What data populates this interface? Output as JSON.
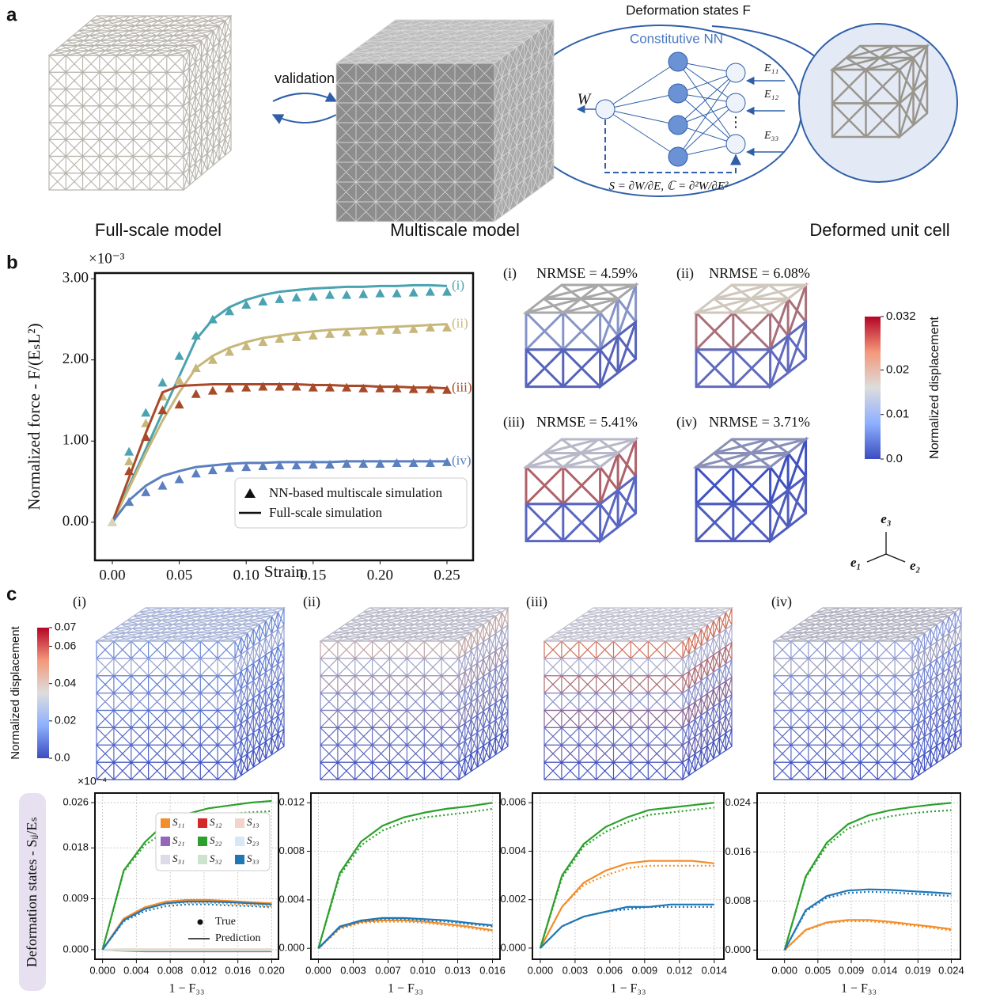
{
  "panel_a": {
    "label": "a",
    "full_scale": "Full-scale model",
    "validation": "validation",
    "multiscale": "Multiscale model",
    "deformation_states": "Deformation states F",
    "network": "Constitutive NN",
    "output": "W",
    "inputs": [
      "E₁₁",
      "E₁₂",
      "E₃₃"
    ],
    "ellipsis": "⋮",
    "formula": "S = ∂W/∂E, ℂ = ∂²W/∂E²",
    "deformed": "Deformed unit cell"
  },
  "panel_b": {
    "label": "b",
    "cells": [
      {
        "tag": "(i)",
        "nrmse": "NRMSE = 4.59%"
      },
      {
        "tag": "(ii)",
        "nrmse": "NRMSE = 6.08%"
      },
      {
        "tag": "(iii)",
        "nrmse": "NRMSE = 5.41%"
      },
      {
        "tag": "(iv)",
        "nrmse": "NRMSE = 3.71%"
      }
    ],
    "colorbar": {
      "label": "Normalized displacement",
      "range": [
        0,
        0.032
      ],
      "ticks": [
        0.032,
        0.02,
        0.01,
        {
          "value": 0,
          "label": "0.0"
        }
      ]
    },
    "axes": [
      "e₁",
      "e₂",
      "e₃"
    ]
  },
  "panel_c": {
    "label": "c",
    "tags": [
      "(i)",
      "(ii)",
      "(iii)",
      "(iv)"
    ],
    "colorbar": {
      "label": "Normalized displacement",
      "range": [
        0,
        0.07
      ],
      "ticks": [
        0.07,
        0.06,
        0.04,
        0.02,
        {
          "value": 0,
          "label": "0.0"
        }
      ]
    },
    "y_label": "Deformation states - Sᵢⱼ/Eₛ"
  },
  "chart_data": [
    {
      "type": "line",
      "x_label": "Strain",
      "y_label": "Normalized force - F/(EₛL²)",
      "y_multiplier": "×10⁻³",
      "grid": false,
      "xlim": [
        -0.013,
        0.2695
      ],
      "xticks": [
        {
          "value": 0,
          "label": "0.00"
        },
        0.05,
        {
          "value": 0.1,
          "label": "0.10"
        },
        0.15,
        {
          "value": 0.2,
          "label": "0.20"
        },
        0.25
      ],
      "ylim": [
        -0.47,
        3.07
      ],
      "yticks": [
        {
          "value": 0,
          "label": "0.00"
        },
        {
          "value": 1,
          "label": "1.00"
        },
        {
          "value": 2,
          "label": "2.00"
        },
        {
          "value": 3,
          "label": "3.00"
        }
      ],
      "legend_entries": [
        "NN-based multiscale simulation",
        "Full-scale simulation"
      ],
      "x": [
        0,
        0.0125,
        0.025,
        0.0375,
        0.05,
        0.0625,
        0.075,
        0.0875,
        0.1,
        0.1125,
        0.125,
        0.1375,
        0.15,
        0.1625,
        0.175,
        0.1875,
        0.2,
        0.2125,
        0.225,
        0.2375,
        0.25
      ],
      "series": [
        {
          "name": "(i)",
          "color": "#4aa3b0",
          "values": [
            0,
            0.45,
            0.9,
            1.35,
            1.8,
            2.25,
            2.5,
            2.65,
            2.74,
            2.8,
            2.84,
            2.86,
            2.88,
            2.89,
            2.9,
            2.9,
            2.91,
            2.91,
            2.92,
            2.92,
            2.91
          ],
          "nn_values": [
            0,
            0.87,
            1.35,
            1.72,
            2.05,
            2.3,
            2.5,
            2.6,
            2.68,
            2.72,
            2.75,
            2.77,
            2.78,
            2.8,
            2.8,
            2.81,
            2.82,
            2.82,
            2.83,
            2.84,
            2.84
          ]
        },
        {
          "name": "(ii)",
          "color": "#c8b77a",
          "values": [
            0,
            0.42,
            0.85,
            1.25,
            1.6,
            1.9,
            2.05,
            2.15,
            2.22,
            2.27,
            2.3,
            2.33,
            2.35,
            2.37,
            2.38,
            2.39,
            2.4,
            2.41,
            2.42,
            2.43,
            2.44
          ],
          "nn_values": [
            0,
            0.75,
            1.22,
            1.55,
            1.75,
            1.9,
            2.0,
            2.1,
            2.17,
            2.22,
            2.26,
            2.28,
            2.3,
            2.32,
            2.34,
            2.35,
            2.36,
            2.37,
            2.38,
            2.4,
            2.4
          ]
        },
        {
          "name": "(iii)",
          "color": "#a84a2a",
          "values": [
            0,
            0.55,
            1.1,
            1.6,
            1.68,
            1.69,
            1.7,
            1.7,
            1.7,
            1.7,
            1.7,
            1.7,
            1.69,
            1.69,
            1.68,
            1.68,
            1.67,
            1.67,
            1.66,
            1.66,
            1.65
          ],
          "nn_values": [
            0,
            0.63,
            1.05,
            1.38,
            1.45,
            1.58,
            1.62,
            1.65,
            1.66,
            1.67,
            1.67,
            1.67,
            1.66,
            1.66,
            1.66,
            1.65,
            1.65,
            1.65,
            1.64,
            1.64,
            1.63
          ]
        },
        {
          "name": "(iv)",
          "color": "#5b7fbf",
          "values": [
            0,
            0.27,
            0.45,
            0.57,
            0.63,
            0.68,
            0.7,
            0.72,
            0.73,
            0.73,
            0.74,
            0.74,
            0.74,
            0.74,
            0.75,
            0.75,
            0.75,
            0.75,
            0.75,
            0.75,
            0.75
          ],
          "nn_values": [
            0,
            0.25,
            0.37,
            0.45,
            0.53,
            0.6,
            0.64,
            0.67,
            0.68,
            0.69,
            0.7,
            0.7,
            0.71,
            0.71,
            0.72,
            0.72,
            0.72,
            0.73,
            0.73,
            0.73,
            0.74
          ]
        }
      ]
    },
    {
      "type": "line",
      "x_label": "1 − F₃₃",
      "y_multiplier": "×10⁻⁴",
      "grid": true,
      "legend_true": "True",
      "legend_prediction": "Prediction",
      "xlim": [
        -0.0009,
        0.0208
      ],
      "xticks": [
        {
          "value": 0,
          "label": "0.000"
        },
        0.004,
        0.008,
        0.012,
        0.016,
        {
          "value": 0.02,
          "label": "0.020"
        }
      ],
      "ylim": [
        -0.0017,
        0.0277
      ],
      "yticks": [
        {
          "value": 0,
          "label": "0.000"
        },
        0.009,
        0.018,
        0.026
      ],
      "x": [
        0,
        0.0025,
        0.005,
        0.0075,
        0.01,
        0.0125,
        0.015,
        0.0175,
        0.02
      ],
      "series": [
        {
          "name": "S₁₁",
          "color": "#f28e2b",
          "values": [
            0,
            0.0055,
            0.0075,
            0.0085,
            0.0088,
            0.0088,
            0.0086,
            0.0084,
            0.0082
          ],
          "true_values": [
            0,
            0.0053,
            0.0072,
            0.0081,
            0.0083,
            0.0083,
            0.0081,
            0.0079,
            0.0077
          ]
        },
        {
          "name": "S₁₂",
          "color": "#d62728",
          "values": [
            0,
            0,
            0,
            0,
            0,
            0,
            0,
            0,
            0
          ]
        },
        {
          "name": "S₁₃",
          "color": "#f2d5c8",
          "values": [
            0,
            0.0001,
            0.0001,
            0.0001,
            0.0001,
            0.0001,
            0.0001,
            0.0001,
            0.0001
          ]
        },
        {
          "name": "S₂₁",
          "color": "#9467bd",
          "values": [
            0,
            -0.0002,
            -0.0003,
            -0.0003,
            -0.0003,
            -0.0003,
            -0.0003,
            -0.0003,
            -0.0003
          ]
        },
        {
          "name": "S₂₂",
          "color": "#2ca02c",
          "values": [
            0,
            0.014,
            0.019,
            0.0225,
            0.024,
            0.025,
            0.0255,
            0.026,
            0.0263
          ],
          "true_values": [
            0,
            0.0138,
            0.0185,
            0.021,
            0.0225,
            0.0235,
            0.024,
            0.0243,
            0.0245
          ]
        },
        {
          "name": "S₂₃",
          "color": "#d6e8f5",
          "values": [
            0,
            0,
            0,
            0,
            0,
            0,
            0,
            0,
            0
          ]
        },
        {
          "name": "S₃₁",
          "color": "#dcdce8",
          "values": [
            0,
            -0.0001,
            -0.0001,
            -0.0001,
            -0.0001,
            -0.0001,
            -0.0001,
            -0.0001,
            -0.0001
          ]
        },
        {
          "name": "S₃₂",
          "color": "#cde3cd",
          "values": [
            0,
            -0.0001,
            -0.0001,
            -0.0001,
            -0.0001,
            -0.0001,
            -0.0001,
            -0.0001,
            -0.0001
          ]
        },
        {
          "name": "S₃₃",
          "color": "#1f77b4",
          "values": [
            0,
            0.0052,
            0.0072,
            0.0082,
            0.0085,
            0.0085,
            0.0084,
            0.0082,
            0.008
          ],
          "true_values": [
            0,
            0.005,
            0.0068,
            0.0077,
            0.008,
            0.008,
            0.0078,
            0.0077,
            0.0075
          ]
        }
      ]
    },
    {
      "type": "line",
      "x_label": "1 − F₃₃",
      "grid": true,
      "xlim": [
        -0.0007,
        0.017
      ],
      "xticks": [
        {
          "value": 0,
          "label": "0.000"
        },
        {
          "value": 0.00326,
          "label": "0.003"
        },
        {
          "value": 0.00652,
          "label": "0.007"
        },
        {
          "value": 0.00978,
          "label": "0.010"
        },
        {
          "value": 0.01304,
          "label": "0.013"
        },
        {
          "value": 0.0163,
          "label": "0.016"
        }
      ],
      "ylim": [
        -0.0009,
        0.0128
      ],
      "yticks": [
        {
          "value": 0,
          "label": "0.000"
        },
        0.004,
        0.008,
        0.012
      ],
      "x": [
        0,
        0.002,
        0.004,
        0.006,
        0.008,
        0.01,
        0.012,
        0.014,
        0.0163
      ],
      "series": [
        {
          "color": "#f28e2b",
          "values": [
            0,
            0.0017,
            0.0022,
            0.0023,
            0.0023,
            0.0022,
            0.002,
            0.0018,
            0.0015
          ],
          "true_values": [
            0,
            0.0016,
            0.0021,
            0.0022,
            0.0022,
            0.0021,
            0.0019,
            0.0017,
            0.0014
          ]
        },
        {
          "color": "#2ca02c",
          "values": [
            0,
            0.0062,
            0.0088,
            0.0101,
            0.0108,
            0.0112,
            0.0115,
            0.0117,
            0.012
          ],
          "true_values": [
            0,
            0.006,
            0.0085,
            0.0097,
            0.0104,
            0.0108,
            0.011,
            0.0112,
            0.0115
          ]
        },
        {
          "color": "#1f77b4",
          "values": [
            0,
            0.0018,
            0.0023,
            0.0025,
            0.0025,
            0.0024,
            0.0023,
            0.0021,
            0.0019
          ],
          "true_values": [
            0,
            0.0017,
            0.0022,
            0.0024,
            0.0024,
            0.0023,
            0.0022,
            0.002,
            0.0018
          ]
        }
      ]
    },
    {
      "type": "line",
      "x_label": "1 − F₃₃",
      "grid": true,
      "xlim": [
        -0.00065,
        0.0152
      ],
      "xticks": [
        {
          "value": 0,
          "label": "0.000"
        },
        {
          "value": 0.00288,
          "label": "0.003"
        },
        {
          "value": 0.00576,
          "label": "0.006"
        },
        {
          "value": 0.00864,
          "label": "0.009"
        },
        {
          "value": 0.01152,
          "label": "0.012"
        },
        {
          "value": 0.0144,
          "label": "0.014"
        }
      ],
      "ylim": [
        -0.00046,
        0.0064
      ],
      "yticks": [
        {
          "value": 0,
          "label": "0.000"
        },
        0.002,
        0.004,
        0.006
      ],
      "x": [
        0,
        0.0018,
        0.0036,
        0.0054,
        0.0072,
        0.009,
        0.0108,
        0.0126,
        0.0144
      ],
      "series": [
        {
          "color": "#f28e2b",
          "values": [
            0,
            0.0017,
            0.0027,
            0.0032,
            0.0035,
            0.0036,
            0.0036,
            0.0036,
            0.0035
          ],
          "true_values": [
            0,
            0.0017,
            0.0026,
            0.003,
            0.0033,
            0.0034,
            0.0034,
            0.0034,
            0.0034
          ]
        },
        {
          "color": "#2ca02c",
          "values": [
            0,
            0.003,
            0.0043,
            0.005,
            0.0054,
            0.0057,
            0.0058,
            0.0059,
            0.006
          ],
          "true_values": [
            0,
            0.0029,
            0.0042,
            0.0048,
            0.0052,
            0.0055,
            0.0056,
            0.0057,
            0.0058
          ]
        },
        {
          "color": "#1f77b4",
          "values": [
            0,
            0.0009,
            0.0013,
            0.0015,
            0.0017,
            0.0017,
            0.0018,
            0.0018,
            0.0018
          ],
          "true_values": [
            0,
            0.0009,
            0.0013,
            0.0015,
            0.0016,
            0.0017,
            0.0017,
            0.0017,
            0.0017
          ]
        }
      ]
    },
    {
      "type": "line",
      "x_label": "1 − F₃₃",
      "grid": true,
      "xlim": [
        -0.0039,
        0.025
      ],
      "xticks": [
        {
          "value": 0,
          "label": "0.000"
        },
        {
          "value": 0.00474,
          "label": "0.005"
        },
        {
          "value": 0.00948,
          "label": "0.009"
        },
        {
          "value": 0.01422,
          "label": "0.014"
        },
        {
          "value": 0.01896,
          "label": "0.019"
        },
        {
          "value": 0.0237,
          "label": "0.024"
        }
      ],
      "ylim": [
        -0.0015,
        0.0256
      ],
      "yticks": [
        {
          "value": 0,
          "label": "0.000"
        },
        0.008,
        0.016,
        0.024
      ],
      "x": [
        0,
        0.003,
        0.006,
        0.009,
        0.012,
        0.015,
        0.018,
        0.021,
        0.0237
      ],
      "series": [
        {
          "color": "#f28e2b",
          "values": [
            0,
            0.0033,
            0.0045,
            0.0049,
            0.0049,
            0.0046,
            0.0042,
            0.0038,
            0.0034
          ],
          "true_values": [
            0,
            0.0032,
            0.0044,
            0.0047,
            0.0047,
            0.0044,
            0.004,
            0.0036,
            0.0032
          ]
        },
        {
          "color": "#2ca02c",
          "values": [
            0,
            0.012,
            0.0175,
            0.0205,
            0.022,
            0.0228,
            0.0233,
            0.0237,
            0.024
          ],
          "true_values": [
            0,
            0.0118,
            0.017,
            0.0198,
            0.021,
            0.0218,
            0.0223,
            0.0226,
            0.0228
          ]
        },
        {
          "color": "#1f77b4",
          "values": [
            0,
            0.0065,
            0.0088,
            0.0097,
            0.0099,
            0.0098,
            0.0096,
            0.0094,
            0.0092
          ],
          "true_values": [
            0,
            0.0063,
            0.0085,
            0.0093,
            0.0095,
            0.0094,
            0.0092,
            0.009,
            0.0088
          ]
        }
      ]
    }
  ]
}
